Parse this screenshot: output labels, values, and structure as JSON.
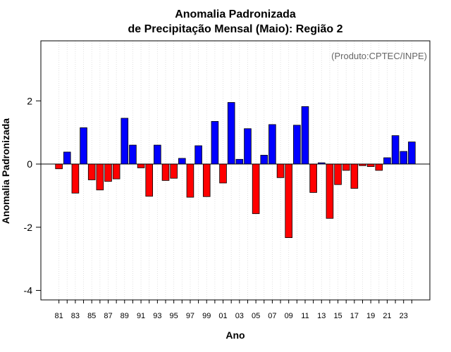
{
  "chart_data": {
    "type": "bar",
    "title_lines": [
      "Anomalia Padronizada",
      "de Precipitação Mensal (Maio): Região 2"
    ],
    "xlabel": "Ano",
    "ylabel": "Anomalia Padronizada",
    "credit": "(Produto:CPTEC/INPE)",
    "ylim": [
      -4.3,
      3.9
    ],
    "yticks": [
      -4,
      -2,
      0,
      2
    ],
    "ytick_labels": [
      "-4",
      "-2",
      "0",
      "2"
    ],
    "grid": "vertical dotted",
    "categories": [
      "81",
      "82",
      "83",
      "84",
      "85",
      "86",
      "87",
      "88",
      "89",
      "90",
      "91",
      "92",
      "93",
      "94",
      "95",
      "96",
      "97",
      "98",
      "99",
      "00",
      "01",
      "02",
      "03",
      "04",
      "05",
      "06",
      "07",
      "08",
      "09",
      "10",
      "11",
      "12",
      "13",
      "14",
      "15",
      "16",
      "17",
      "18",
      "19",
      "20",
      "21",
      "22",
      "23",
      "24"
    ],
    "xtick_labels": [
      "81",
      "83",
      "85",
      "87",
      "89",
      "91",
      "93",
      "95",
      "97",
      "99",
      "01",
      "03",
      "05",
      "07",
      "09",
      "11",
      "13",
      "15",
      "17",
      "19",
      "21",
      "23"
    ],
    "values": [
      -0.15,
      0.38,
      -0.92,
      1.15,
      -0.5,
      -0.82,
      -0.55,
      -0.47,
      1.45,
      0.6,
      -0.12,
      -1.02,
      0.6,
      -0.52,
      -0.45,
      0.18,
      -1.05,
      0.58,
      -1.03,
      1.35,
      -0.6,
      1.95,
      0.15,
      1.12,
      -1.57,
      0.28,
      1.25,
      -0.43,
      -2.33,
      1.23,
      1.82,
      -0.9,
      0.04,
      -1.72,
      -0.65,
      -0.2,
      -0.77,
      -0.05,
      -0.08,
      -0.2,
      0.2,
      0.9,
      0.4,
      0.7
    ],
    "colors": {
      "positive": "#0000ff",
      "negative": "#ff0000"
    }
  }
}
